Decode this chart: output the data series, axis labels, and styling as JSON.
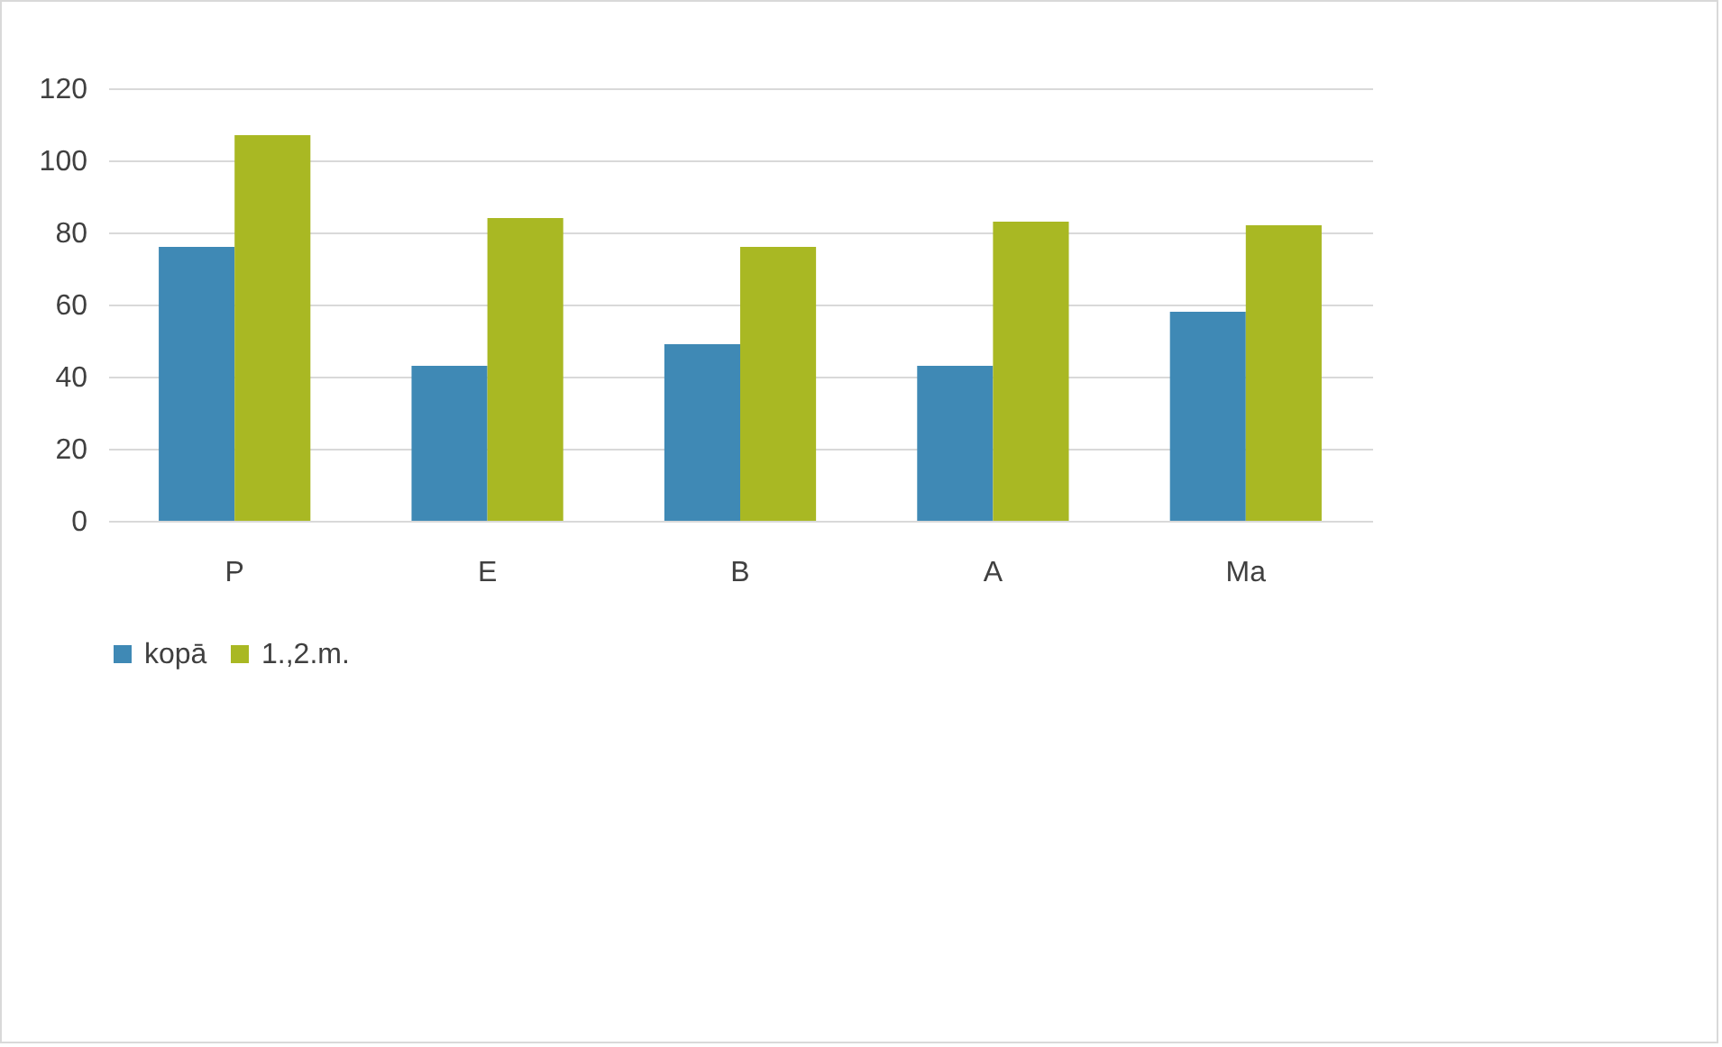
{
  "chart_data": {
    "type": "bar",
    "categories": [
      "P",
      "E",
      "B",
      "A",
      "Ma"
    ],
    "series": [
      {
        "name": "kopā",
        "color": "#3f89b5",
        "values": [
          76,
          43,
          49,
          43,
          58
        ]
      },
      {
        "name": "1.,2.m.",
        "color": "#a9b823",
        "values": [
          107,
          84,
          76,
          83,
          82
        ]
      }
    ],
    "ylim": [
      0,
      120
    ],
    "yticks": [
      0,
      20,
      40,
      60,
      80,
      100,
      120
    ],
    "grid": "y",
    "legend": "bottom"
  }
}
